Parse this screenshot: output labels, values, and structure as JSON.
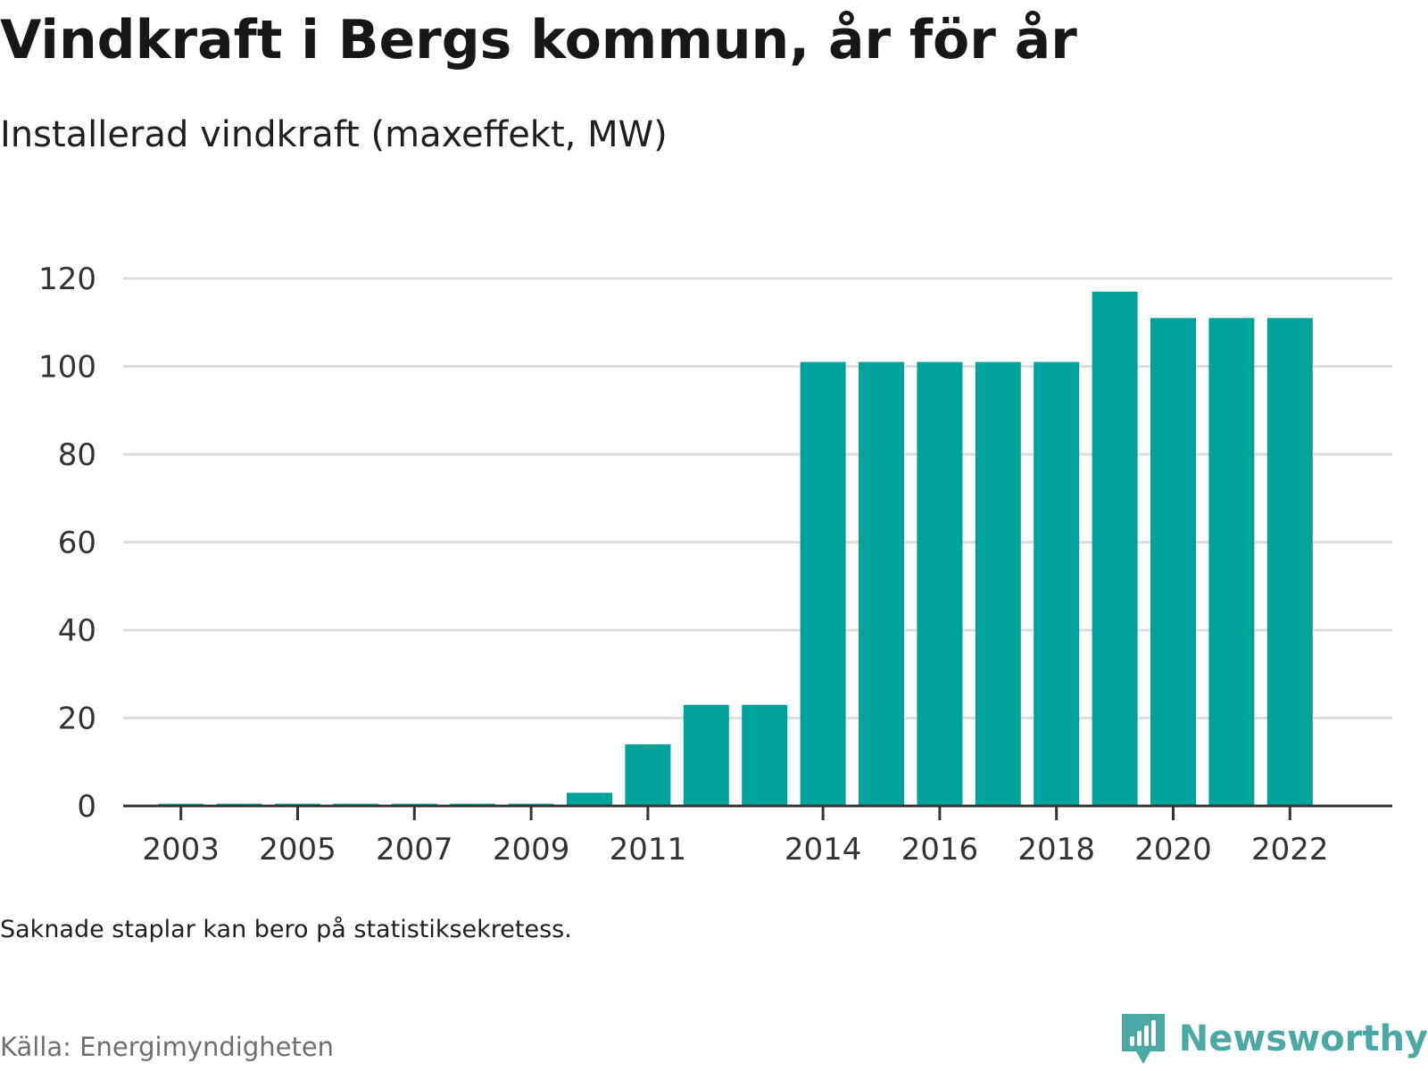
{
  "title": "Vindkraft i Bergs kommun, år för år",
  "subtitle": "Installerad vindkraft (maxeffekt, MW)",
  "note": "Saknade staplar kan bero på statistiksekretess.",
  "source": "Källa: Energimyndigheten",
  "brand": {
    "name": "Newsworthy",
    "icon": "newsworthy-chart-bubble-icon",
    "color": "#4aa9a2"
  },
  "colors": {
    "bar": "#00a39a",
    "grid": "#dddddd",
    "axis": "#333333",
    "text": "#333333"
  },
  "chart_data": {
    "type": "bar",
    "categories": [
      "2003",
      "2004",
      "2005",
      "2006",
      "2007",
      "2008",
      "2009",
      "2010",
      "2011",
      "2012",
      "2013",
      "2014",
      "2015",
      "2016",
      "2017",
      "2018",
      "2019",
      "2020",
      "2021",
      "2022"
    ],
    "x_tick_labels": [
      "2003",
      "2005",
      "2007",
      "2009",
      "2011",
      "2014",
      "2016",
      "2018",
      "2020",
      "2022"
    ],
    "values": [
      0.5,
      0.5,
      0.5,
      0.5,
      0.5,
      0.5,
      0.5,
      3,
      14,
      23,
      23,
      101,
      101,
      101,
      101,
      101,
      117,
      111,
      111,
      111
    ],
    "y_ticks": [
      0,
      20,
      40,
      60,
      80,
      100,
      120
    ],
    "ylim": [
      0,
      120
    ],
    "grid": true
  }
}
